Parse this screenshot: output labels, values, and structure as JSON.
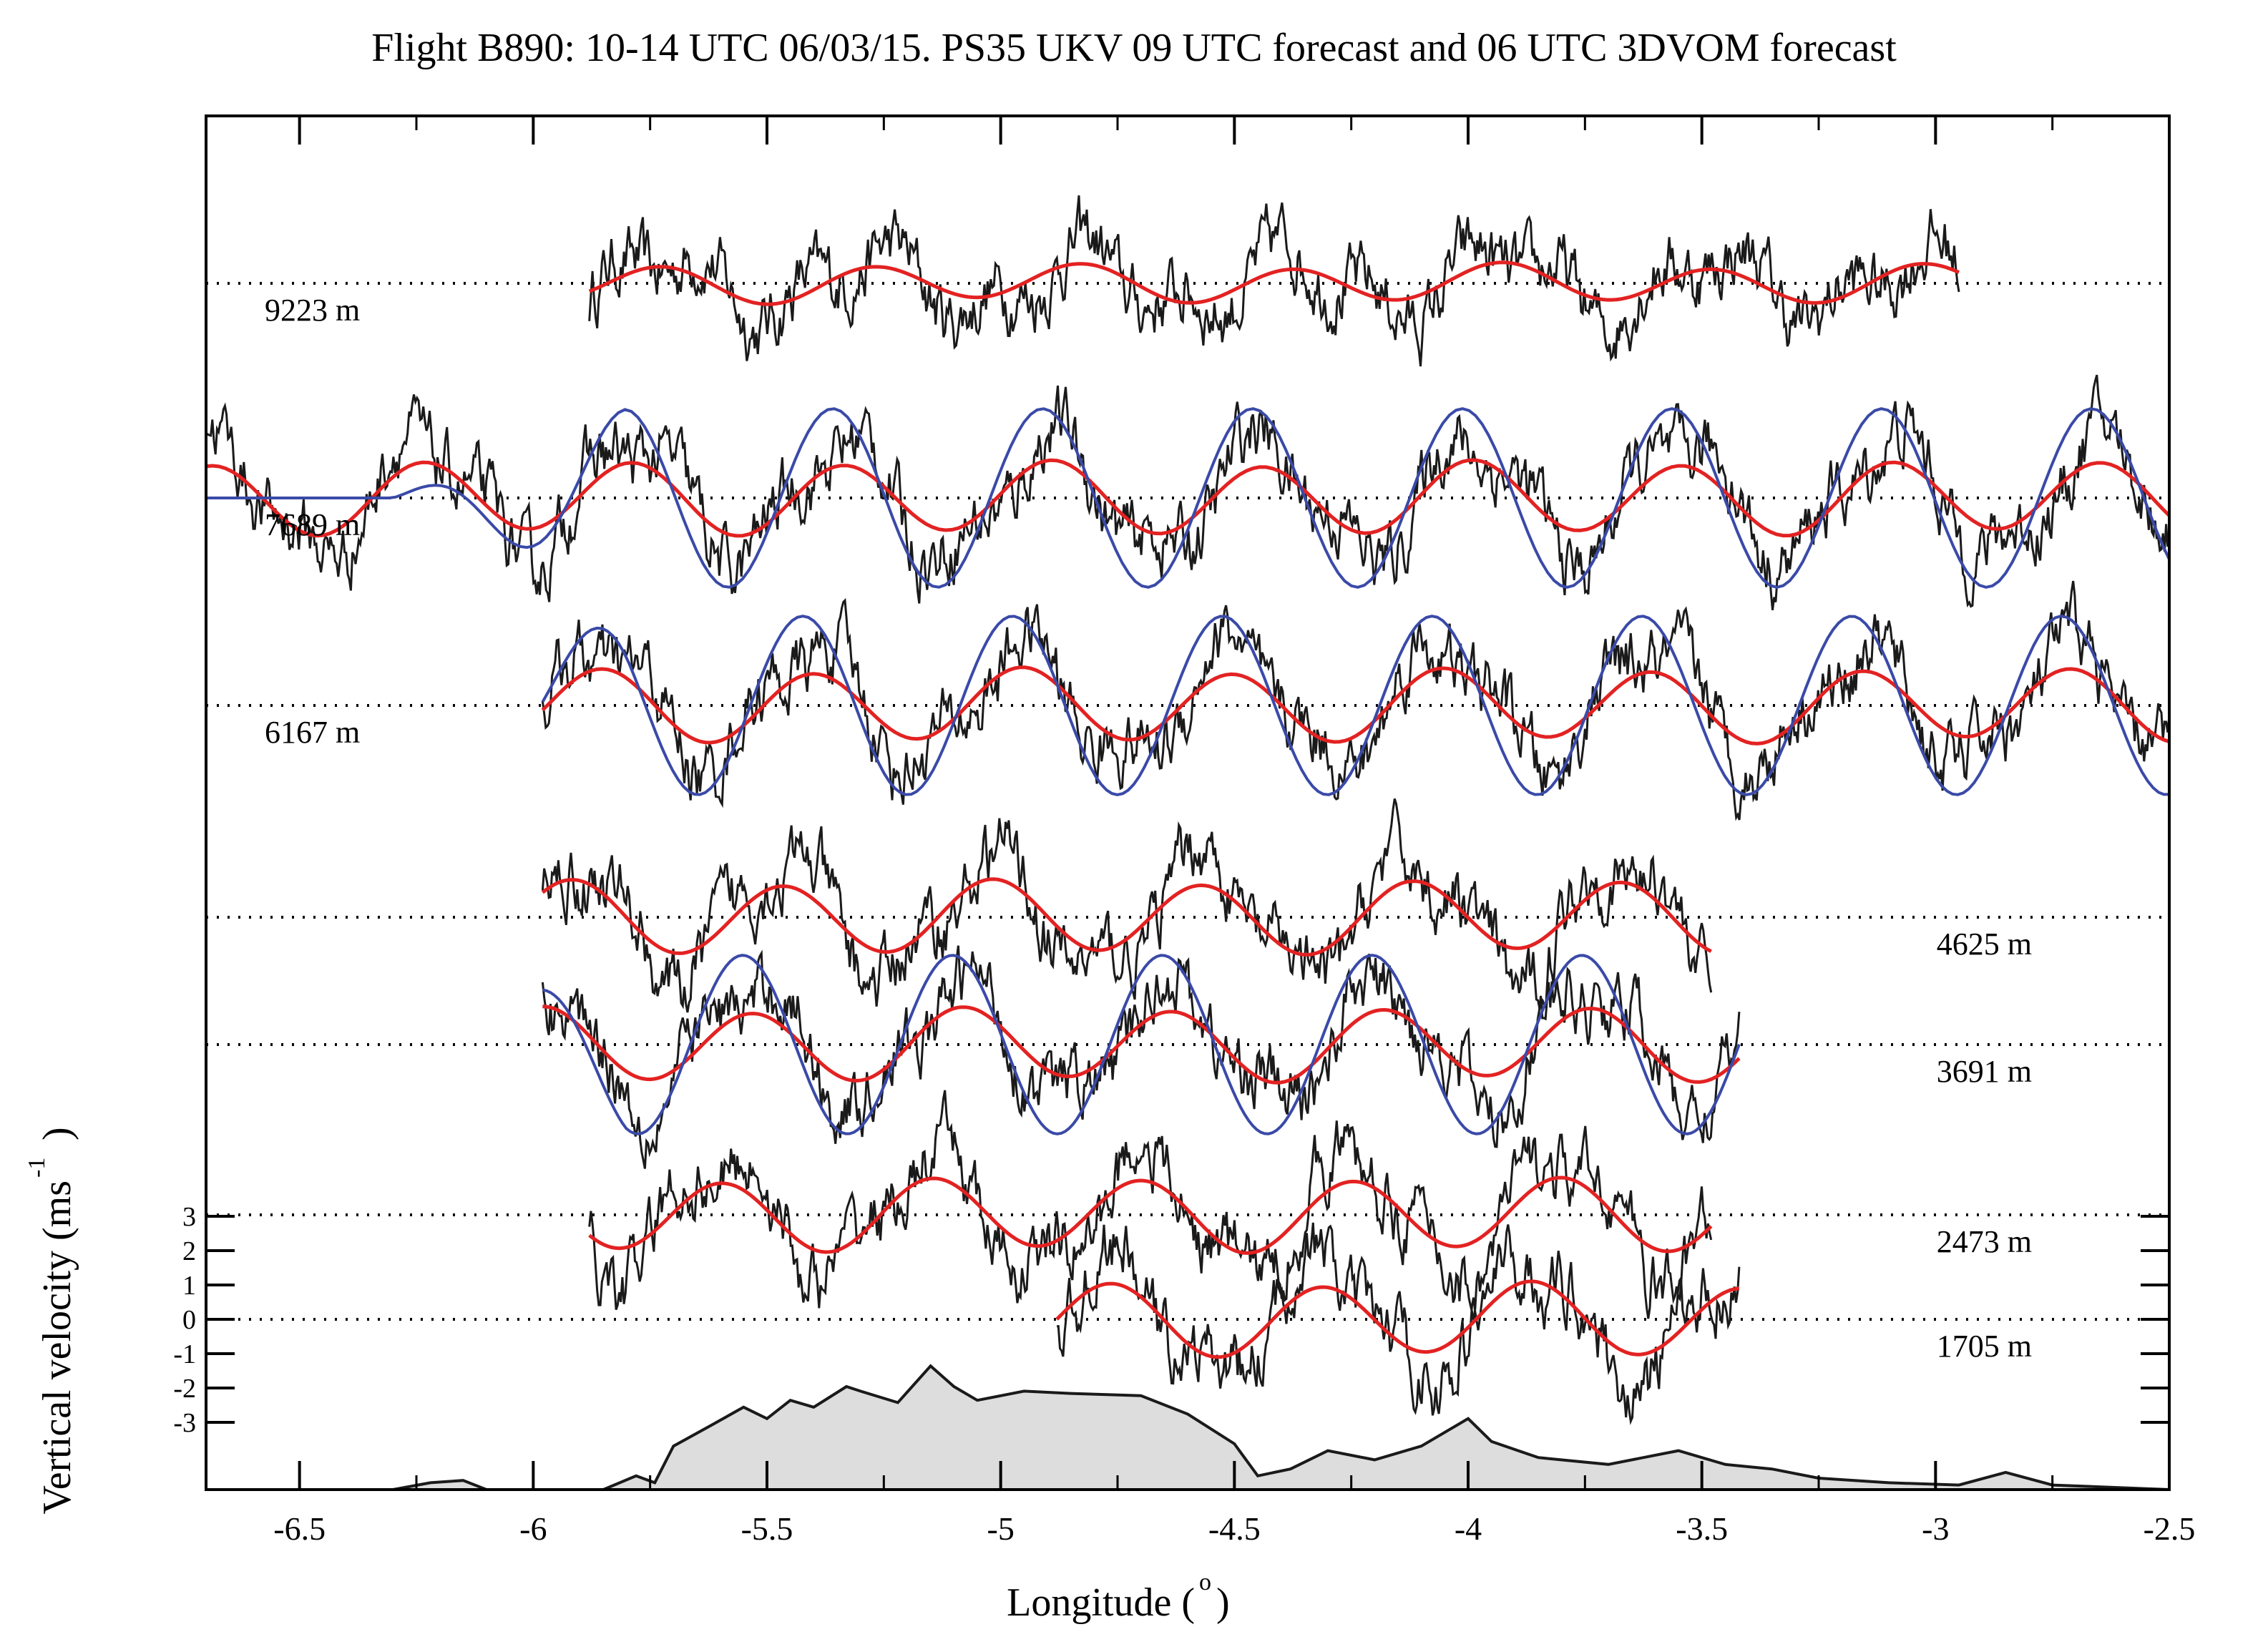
{
  "chart_data": {
    "type": "line",
    "title": "Flight B890:  10-14 UTC  06/03/15.  PS35 UKV 09 UTC forecast and 06 UTC 3DVOM forecast",
    "xlabel": "Longitude (",
    "xlabel_sup": "o",
    "xlabel_end": ")",
    "ylabel": "Vertical velocity (ms",
    "ylabel_sup": "-1",
    "ylabel_end": ")",
    "xlim": [
      -6.7,
      -2.5
    ],
    "x_ticks": [
      "-6.5",
      "-6",
      "-5.5",
      "-5",
      "-4.5",
      "-4",
      "-3.5",
      "-3",
      "-2.5"
    ],
    "y_scale_ticks": [
      "3",
      "2",
      "1",
      "0",
      "-1",
      "-2",
      "-3"
    ],
    "y_scale_values": [
      3,
      2,
      1,
      0,
      -1,
      -2,
      -3
    ],
    "y_scale_unit": "m/s per tick",
    "grid": false,
    "legend": "none",
    "colors": {
      "observed": "#1a1a1a",
      "ukv": "#e32222",
      "vom": "#3a4aa8",
      "terrain": "#dddddd"
    },
    "legs": [
      {
        "label": "9223 m",
        "x_start": -5.88,
        "x_end": -2.95,
        "ukv": true,
        "vom": false,
        "label_side": "left"
      },
      {
        "label": "7689 m",
        "x_start": -6.7,
        "x_end": -2.5,
        "ukv": true,
        "vom": true,
        "label_side": "left"
      },
      {
        "label": "6167 m",
        "x_start": -5.98,
        "x_end": -2.5,
        "ukv": true,
        "vom": true,
        "label_side": "left"
      },
      {
        "label": "4625 m",
        "x_start": -5.98,
        "x_end": -3.48,
        "ukv": true,
        "vom": false,
        "label_side": "right"
      },
      {
        "label": "3691 m",
        "x_start": -5.98,
        "x_end": -3.42,
        "ukv": true,
        "vom": true,
        "label_side": "right"
      },
      {
        "label": "2473 m",
        "x_start": -5.88,
        "x_end": -3.48,
        "ukv": true,
        "vom": false,
        "label_side": "right"
      },
      {
        "label": "1705 m",
        "x_start": -4.88,
        "x_end": -3.42,
        "ukv": true,
        "vom": false,
        "label_side": "right"
      }
    ],
    "terrain_profile": {
      "x": [
        -6.7,
        -6.3,
        -6.22,
        -6.15,
        -6.1,
        -6.0,
        -5.85,
        -5.78,
        -5.74,
        -5.7,
        -5.62,
        -5.55,
        -5.5,
        -5.45,
        -5.4,
        -5.33,
        -5.3,
        -5.22,
        -5.15,
        -5.1,
        -5.05,
        -4.95,
        -4.85,
        -4.7,
        -4.6,
        -4.5,
        -4.45,
        -4.38,
        -4.3,
        -4.2,
        -4.1,
        -4.0,
        -3.95,
        -3.85,
        -3.7,
        -3.55,
        -3.45,
        -3.35,
        -3.25,
        -3.1,
        -2.95,
        -2.85,
        -2.75,
        -2.5
      ],
      "elevation_m": [
        0,
        0,
        60,
        80,
        0,
        0,
        0,
        120,
        60,
        380,
        560,
        720,
        620,
        780,
        720,
        900,
        860,
        760,
        1080,
        900,
        780,
        860,
        840,
        820,
        660,
        400,
        120,
        180,
        340,
        260,
        380,
        620,
        420,
        280,
        220,
        340,
        220,
        180,
        100,
        60,
        40,
        150,
        40,
        0
      ]
    }
  }
}
